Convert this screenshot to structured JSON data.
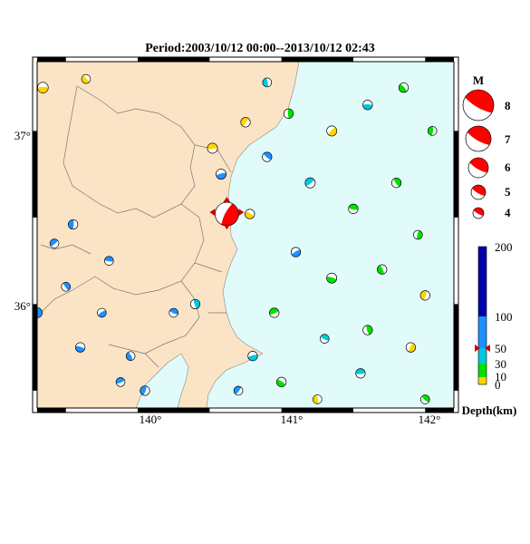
{
  "map": {
    "title": "Period:2003/10/12 00:00--2013/10/12 02:43",
    "lon_labels": [
      "140°",
      "141°",
      "142°"
    ],
    "lat_labels": [
      "37°",
      "36°"
    ],
    "lon_range": [
      139.3,
      142.2
    ],
    "lat_range": [
      35.4,
      37.4
    ],
    "colors": {
      "land": "#fbe4c5",
      "sea": "#e1fbfb",
      "depth_shallow": "#ffd400",
      "depth_10_30": "#00e000",
      "depth_30_50": "#00c8e0",
      "depth_50_100": "#1e90ff",
      "depth_deep": "#0000aa",
      "main_event": "#ff0000"
    }
  },
  "magnitude_legend": {
    "title": "M",
    "labels": [
      "8",
      "7",
      "6",
      "5",
      "4"
    ]
  },
  "depth_legend": {
    "tick_labels": [
      "200",
      "100",
      "50",
      "30",
      "10",
      "0"
    ],
    "title": "Depth(km)",
    "marker_depth_km": 50
  },
  "events": [
    {
      "lon": 139.34,
      "lat": 37.25,
      "mag": 4.6,
      "depth": 15,
      "color": "yellow"
    },
    {
      "lon": 139.64,
      "lat": 37.3,
      "mag": 4.3,
      "depth": 12,
      "color": "yellow"
    },
    {
      "lon": 139.55,
      "lat": 36.46,
      "mag": 4.4,
      "depth": 60,
      "color": "blue"
    },
    {
      "lon": 139.42,
      "lat": 36.35,
      "mag": 4.3,
      "depth": 60,
      "color": "blue"
    },
    {
      "lon": 139.8,
      "lat": 36.25,
      "mag": 4.3,
      "depth": 60,
      "color": "blue"
    },
    {
      "lon": 139.5,
      "lat": 36.1,
      "mag": 4.3,
      "depth": 60,
      "color": "blue"
    },
    {
      "lon": 139.3,
      "lat": 35.95,
      "mag": 4.5,
      "depth": 60,
      "color": "blue"
    },
    {
      "lon": 139.75,
      "lat": 35.95,
      "mag": 4.3,
      "depth": 60,
      "color": "blue"
    },
    {
      "lon": 139.6,
      "lat": 35.75,
      "mag": 4.4,
      "depth": 60,
      "color": "blue"
    },
    {
      "lon": 139.95,
      "lat": 35.7,
      "mag": 4.3,
      "depth": 60,
      "color": "blue"
    },
    {
      "lon": 140.05,
      "lat": 35.5,
      "mag": 4.4,
      "depth": 60,
      "color": "blue"
    },
    {
      "lon": 139.88,
      "lat": 35.55,
      "mag": 4.3,
      "depth": 60,
      "color": "blue"
    },
    {
      "lon": 140.25,
      "lat": 35.95,
      "mag": 4.3,
      "depth": 60,
      "color": "blue"
    },
    {
      "lon": 140.4,
      "lat": 36.0,
      "mag": 4.4,
      "depth": 45,
      "color": "cyan"
    },
    {
      "lon": 140.62,
      "lat": 36.52,
      "mag": 6.8,
      "depth": 45,
      "color": "red"
    },
    {
      "lon": 140.58,
      "lat": 36.75,
      "mag": 4.5,
      "depth": 55,
      "color": "blue"
    },
    {
      "lon": 140.78,
      "lat": 36.52,
      "mag": 4.4,
      "depth": 15,
      "color": "yellow"
    },
    {
      "lon": 140.9,
      "lat": 37.28,
      "mag": 4.3,
      "depth": 45,
      "color": "cyan"
    },
    {
      "lon": 140.75,
      "lat": 37.05,
      "mag": 4.4,
      "depth": 12,
      "color": "yellow"
    },
    {
      "lon": 140.52,
      "lat": 36.9,
      "mag": 4.5,
      "depth": 15,
      "color": "yellow"
    },
    {
      "lon": 140.9,
      "lat": 36.85,
      "mag": 4.4,
      "depth": 55,
      "color": "blue"
    },
    {
      "lon": 141.05,
      "lat": 37.1,
      "mag": 4.4,
      "depth": 25,
      "color": "green"
    },
    {
      "lon": 141.35,
      "lat": 37.0,
      "mag": 4.5,
      "depth": 15,
      "color": "yellow"
    },
    {
      "lon": 141.6,
      "lat": 37.15,
      "mag": 4.4,
      "depth": 45,
      "color": "cyan"
    },
    {
      "lon": 141.85,
      "lat": 37.25,
      "mag": 4.4,
      "depth": 25,
      "color": "green"
    },
    {
      "lon": 142.05,
      "lat": 37.0,
      "mag": 4.3,
      "depth": 25,
      "color": "green"
    },
    {
      "lon": 141.2,
      "lat": 36.7,
      "mag": 4.5,
      "depth": 45,
      "color": "cyan"
    },
    {
      "lon": 141.5,
      "lat": 36.55,
      "mag": 4.4,
      "depth": 25,
      "color": "green"
    },
    {
      "lon": 141.8,
      "lat": 36.7,
      "mag": 4.4,
      "depth": 25,
      "color": "green"
    },
    {
      "lon": 141.95,
      "lat": 36.4,
      "mag": 4.3,
      "depth": 25,
      "color": "green"
    },
    {
      "lon": 141.1,
      "lat": 36.3,
      "mag": 4.4,
      "depth": 55,
      "color": "blue"
    },
    {
      "lon": 141.35,
      "lat": 36.15,
      "mag": 4.5,
      "depth": 25,
      "color": "green"
    },
    {
      "lon": 141.7,
      "lat": 36.2,
      "mag": 4.4,
      "depth": 25,
      "color": "green"
    },
    {
      "lon": 142.0,
      "lat": 36.05,
      "mag": 4.4,
      "depth": 15,
      "color": "yellow"
    },
    {
      "lon": 140.95,
      "lat": 35.95,
      "mag": 4.4,
      "depth": 25,
      "color": "green"
    },
    {
      "lon": 141.3,
      "lat": 35.8,
      "mag": 4.3,
      "depth": 45,
      "color": "cyan"
    },
    {
      "lon": 141.6,
      "lat": 35.85,
      "mag": 4.4,
      "depth": 25,
      "color": "green"
    },
    {
      "lon": 141.9,
      "lat": 35.75,
      "mag": 4.4,
      "depth": 15,
      "color": "yellow"
    },
    {
      "lon": 140.8,
      "lat": 35.7,
      "mag": 4.4,
      "depth": 45,
      "color": "cyan"
    },
    {
      "lon": 141.0,
      "lat": 35.55,
      "mag": 4.4,
      "depth": 25,
      "color": "green"
    },
    {
      "lon": 141.25,
      "lat": 35.45,
      "mag": 4.3,
      "depth": 15,
      "color": "yellow"
    },
    {
      "lon": 140.7,
      "lat": 35.5,
      "mag": 4.3,
      "depth": 55,
      "color": "blue"
    },
    {
      "lon": 141.55,
      "lat": 35.6,
      "mag": 4.4,
      "depth": 45,
      "color": "cyan"
    },
    {
      "lon": 142.0,
      "lat": 35.45,
      "mag": 4.3,
      "depth": 25,
      "color": "green"
    }
  ]
}
